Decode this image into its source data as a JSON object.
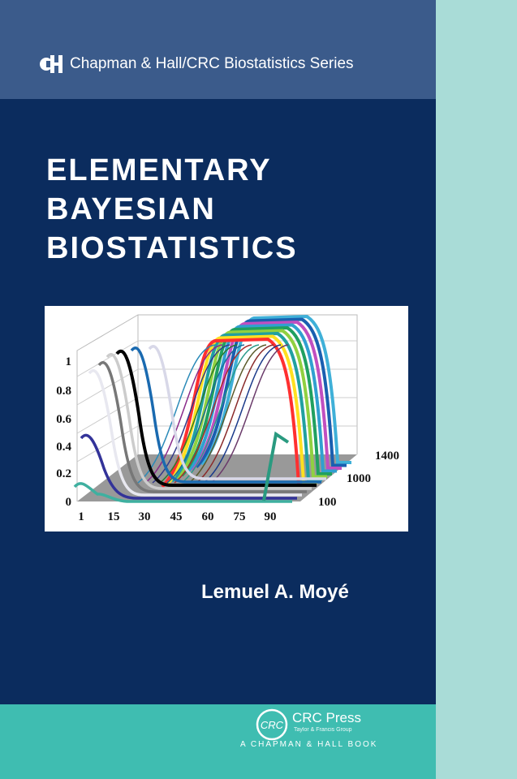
{
  "series": {
    "logo": "CH",
    "label": "Chapman & Hall/CRC Biostatistics Series"
  },
  "title": {
    "lines": [
      "ELEMENTARY",
      "BAYESIAN",
      "BIOSTATISTICS"
    ]
  },
  "cover_figure": {
    "y_ticks": [
      "1",
      "0.8",
      "0.6",
      "0.4",
      "0.2",
      "0"
    ],
    "x_ticks": [
      "1",
      "15",
      "30",
      "45",
      "60",
      "75",
      "90"
    ],
    "depth_ticks": [
      "1400",
      "1000",
      "100"
    ]
  },
  "author": "Lemuel A. Moyé",
  "publisher": {
    "logo": "CRC",
    "name": "CRC Press",
    "group": "Taylor & Francis Group",
    "imprint": "A CHAPMAN & HALL BOOK"
  },
  "colors": {
    "top_band": "#3b5b8b",
    "navy": "#0b2c5e",
    "teal": "#3fbdb1",
    "strip": "#a9dcd7"
  }
}
